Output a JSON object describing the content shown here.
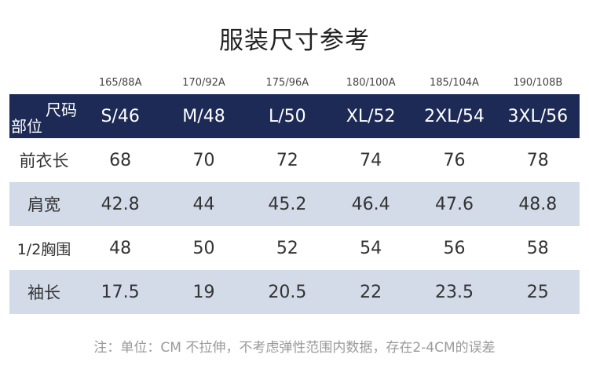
{
  "title": "服装尺寸参考",
  "body_codes": [
    "165/88A",
    "170/92A",
    "175/96A",
    "180/100A",
    "185/104A",
    "190/108B"
  ],
  "header": {
    "corner_top": "尺码",
    "corner_bottom": "部位",
    "sizes": [
      "S/46",
      "M/48",
      "L/50",
      "XL/52",
      "2XL/54",
      "3XL/56"
    ]
  },
  "rows": [
    {
      "label": "前衣长",
      "values": [
        "68",
        "70",
        "72",
        "74",
        "76",
        "78"
      ]
    },
    {
      "label": "肩宽",
      "values": [
        "42.8",
        "44",
        "45.2",
        "46.4",
        "47.6",
        "48.8"
      ]
    },
    {
      "label": "1/2胸围",
      "values": [
        "48",
        "50",
        "52",
        "54",
        "56",
        "58"
      ]
    },
    {
      "label": "袖长",
      "values": [
        "17.5",
        "19",
        "20.5",
        "22",
        "23.5",
        "25"
      ]
    }
  ],
  "note": "注：单位：CM 不拉伸，不考虑弹性范围内数据，存在2-4CM的误差",
  "colors": {
    "header_bg": "#1c2a55",
    "stripe_bg": "#d3dbe9"
  }
}
